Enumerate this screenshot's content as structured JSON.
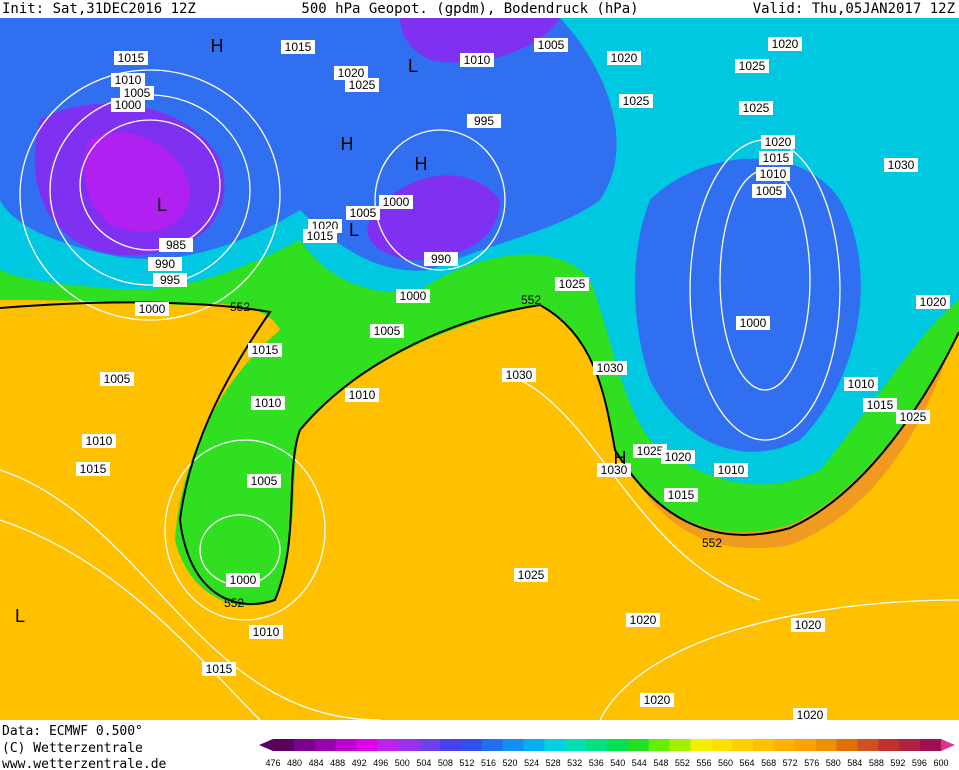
{
  "header": {
    "init": "Init: Sat,31DEC2016 12Z",
    "title": "500 hPa Geopot. (gpdm), Bodendruck (hPa)",
    "valid": "Valid: Thu,05JAN2017 12Z"
  },
  "footer": {
    "data": "Data: ECMWF  0.500°",
    "copyright": "(C) Wetterzentrale",
    "url": "www.wetterzentrale.de"
  },
  "colorbar": {
    "ticks": [
      476,
      480,
      484,
      488,
      492,
      496,
      500,
      504,
      508,
      512,
      516,
      520,
      524,
      528,
      532,
      536,
      540,
      544,
      548,
      552,
      556,
      560,
      564,
      568,
      572,
      576,
      580,
      584,
      588,
      592,
      596,
      600
    ],
    "colors": [
      "#5a0060",
      "#7a0090",
      "#9a00b0",
      "#c000d0",
      "#e000f0",
      "#c020f0",
      "#9a30f0",
      "#7040f0",
      "#4b40f0",
      "#3050f0",
      "#2070f0",
      "#1090f0",
      "#00b0f0",
      "#00d0e0",
      "#00e0b0",
      "#00e080",
      "#00e050",
      "#20e020",
      "#60f000",
      "#a0f000",
      "#f0f000",
      "#ffe000",
      "#ffd000",
      "#ffc000",
      "#ffb000",
      "#ffa000",
      "#f09000",
      "#e07000",
      "#d05020",
      "#c03030",
      "#b02040",
      "#a01050"
    ]
  },
  "isobar_labels": [
    "1015",
    "1010",
    "1005",
    "1000",
    "985",
    "990",
    "995",
    "1000",
    "1015",
    "1020",
    "1025",
    "1010",
    "1005",
    "995",
    "1000",
    "1005",
    "1020",
    "1015",
    "990",
    "1000",
    "1005",
    "1015",
    "1005",
    "1010",
    "1010",
    "1010",
    "1015",
    "1005",
    "1000",
    "1010",
    "1015",
    "1020",
    "1025",
    "1020",
    "1025",
    "1025",
    "1020",
    "1015",
    "1010",
    "1005",
    "1030",
    "1025",
    "1000",
    "1020",
    "1030",
    "1030",
    "1010",
    "1015",
    "1025",
    "1025",
    "1020",
    "1010",
    "1030",
    "1015",
    "1025",
    "1020",
    "1020",
    "1020",
    "1020"
  ],
  "height_labels": [
    "552",
    "552",
    "552",
    "552"
  ],
  "pressure_centers": [
    "H",
    "H",
    "H",
    "H",
    "L",
    "L",
    "L",
    "L"
  ]
}
